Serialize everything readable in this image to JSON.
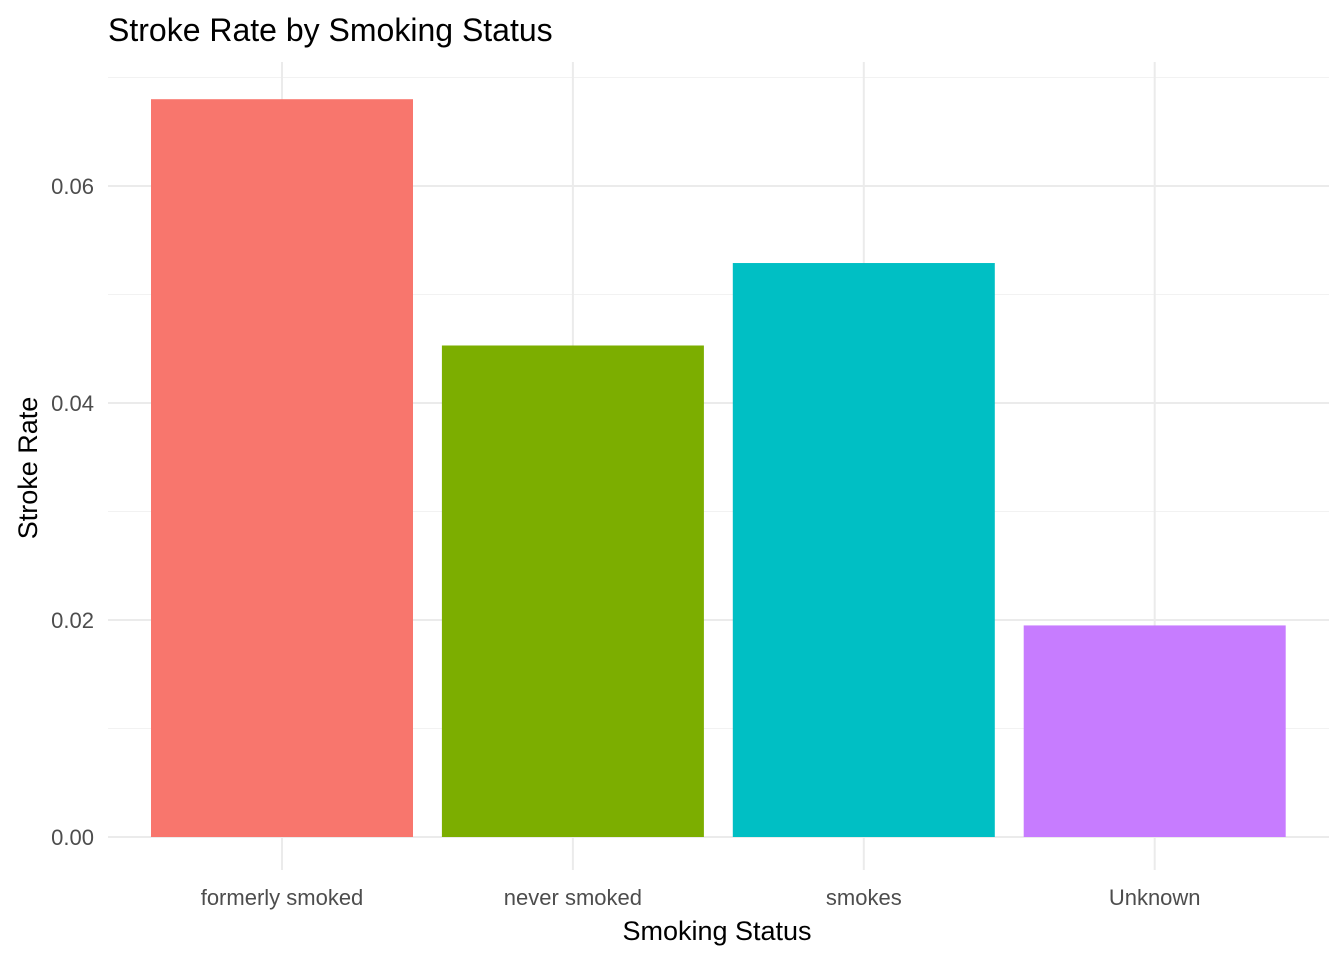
{
  "chart_data": {
    "type": "bar",
    "title": "Stroke Rate by Smoking Status",
    "xlabel": "Smoking Status",
    "ylabel": "Stroke Rate",
    "categories": [
      "formerly smoked",
      "never smoked",
      "smokes",
      "Unknown"
    ],
    "values": [
      0.068,
      0.0453,
      0.0529,
      0.0195
    ],
    "colors": [
      "#F8766D",
      "#7CAE00",
      "#00BFC4",
      "#C77CFF"
    ],
    "ylim": [
      0,
      0.07
    ],
    "yticks": [
      0,
      0.02,
      0.04,
      0.06
    ],
    "ytick_labels": [
      "0.00",
      "0.02",
      "0.04",
      "0.06"
    ],
    "grid": true,
    "legend": "none"
  }
}
